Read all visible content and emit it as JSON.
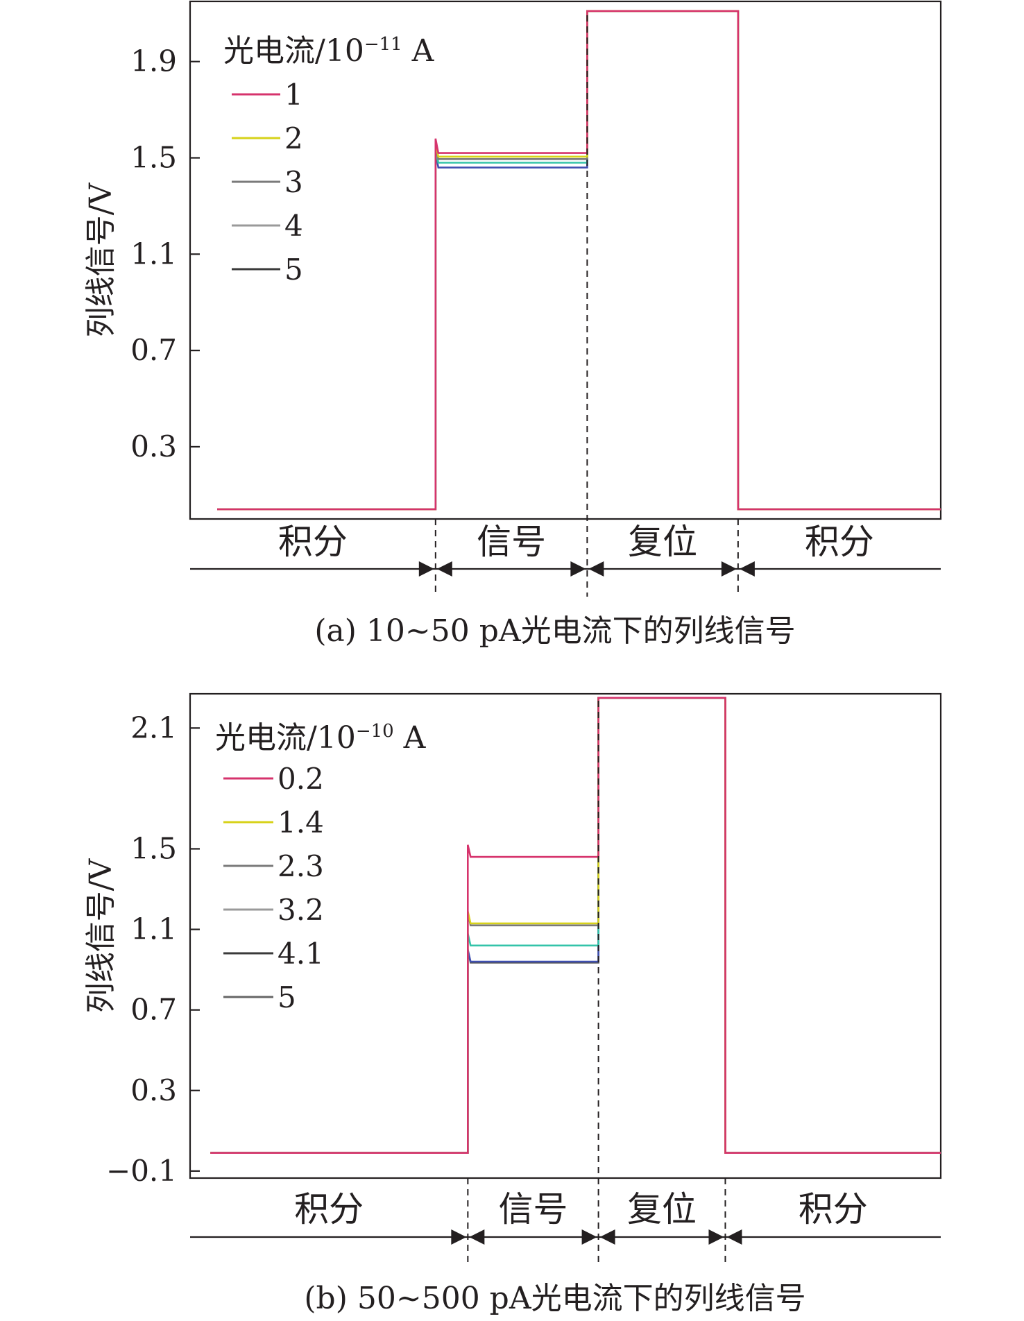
{
  "chart_data": [
    {
      "type": "line",
      "caption": "(a) 10~50 pA光电流下的列线信号",
      "ylabel": "列线信号/V",
      "ylim": [
        0.0,
        2.15
      ],
      "yticks": [
        0.3,
        0.7,
        1.1,
        1.5,
        1.9
      ],
      "tick_labels": [
        "0.3",
        "0.7",
        "1.1",
        "1.5",
        "1.9"
      ],
      "legend": {
        "title_main": "光电流/10",
        "title_exp": "−11",
        "title_unit": " A",
        "position": "top-left"
      },
      "phase_labels": [
        "积分",
        "信号",
        "复位",
        "积分"
      ],
      "phases": [
        {
          "start": 0.0,
          "end": 0.327
        },
        {
          "start": 0.327,
          "end": 0.529
        },
        {
          "start": 0.529,
          "end": 0.73
        },
        {
          "start": 0.73,
          "end": 1.0
        }
      ],
      "x": [
        0.036,
        0.327,
        0.327,
        0.529,
        0.529,
        0.73,
        0.73,
        1.0
      ],
      "common": {
        "integration_level": 0.04,
        "reset_level": 2.11
      },
      "series": [
        {
          "name": "1",
          "color": "#d6336c",
          "signal_level": 1.52
        },
        {
          "name": "2",
          "color": "#d7d21a",
          "signal_level": 1.505
        },
        {
          "name": "3",
          "color": "#7a7a7a",
          "signal_level": 1.495
        },
        {
          "name": "4",
          "color": "#34c3a9",
          "signal_level": 1.48
        },
        {
          "name": "5",
          "color": "#3f4fb0",
          "signal_level": 1.46
        }
      ],
      "legend_colors": [
        "#d6336c",
        "#d7d21a",
        "#7a7a7a",
        "#9a9a9a",
        "#3a3a3a"
      ],
      "grid": false
    },
    {
      "type": "line",
      "caption": "(b) 50~500 pA光电流下的列线信号",
      "ylabel": "列线信号/V",
      "ylim": [
        -0.135,
        2.27
      ],
      "yticks": [
        -0.1,
        0.3,
        0.7,
        1.1,
        1.5,
        2.1
      ],
      "tick_labels": [
        "−0.1",
        "0.3",
        "0.7",
        "1.1",
        "1.5",
        "2.1"
      ],
      "legend": {
        "title_main": "光电流/10",
        "title_exp": "−10",
        "title_unit": " A",
        "position": "top-left"
      },
      "phase_labels": [
        "积分",
        "信号",
        "复位",
        "积分"
      ],
      "phases": [
        {
          "start": 0.0,
          "end": 0.37
        },
        {
          "start": 0.37,
          "end": 0.544
        },
        {
          "start": 0.544,
          "end": 0.713
        },
        {
          "start": 0.713,
          "end": 1.0
        }
      ],
      "x": [
        0.027,
        0.37,
        0.37,
        0.544,
        0.544,
        0.713,
        0.713,
        1.0
      ],
      "common": {
        "integration_level": -0.01,
        "reset_level": 2.25
      },
      "series": [
        {
          "name": "0.2",
          "color": "#d6336c",
          "signal_level": 1.46
        },
        {
          "name": "1.4",
          "color": "#d7d21a",
          "signal_level": 1.13
        },
        {
          "name": "2.3",
          "color": "#7a7a7a",
          "signal_level": 1.12
        },
        {
          "name": "3.2",
          "color": "#34c3a9",
          "signal_level": 1.02
        },
        {
          "name": "4.1",
          "color": "#3f4fb0",
          "signal_level": 0.94
        },
        {
          "name": "5",
          "color": "#555555",
          "signal_level": 0.935
        }
      ],
      "legend_colors": [
        "#d6336c",
        "#d7d21a",
        "#7a7a7a",
        "#9a9a9a",
        "#3a3a3a",
        "#666666"
      ],
      "grid": false
    }
  ]
}
